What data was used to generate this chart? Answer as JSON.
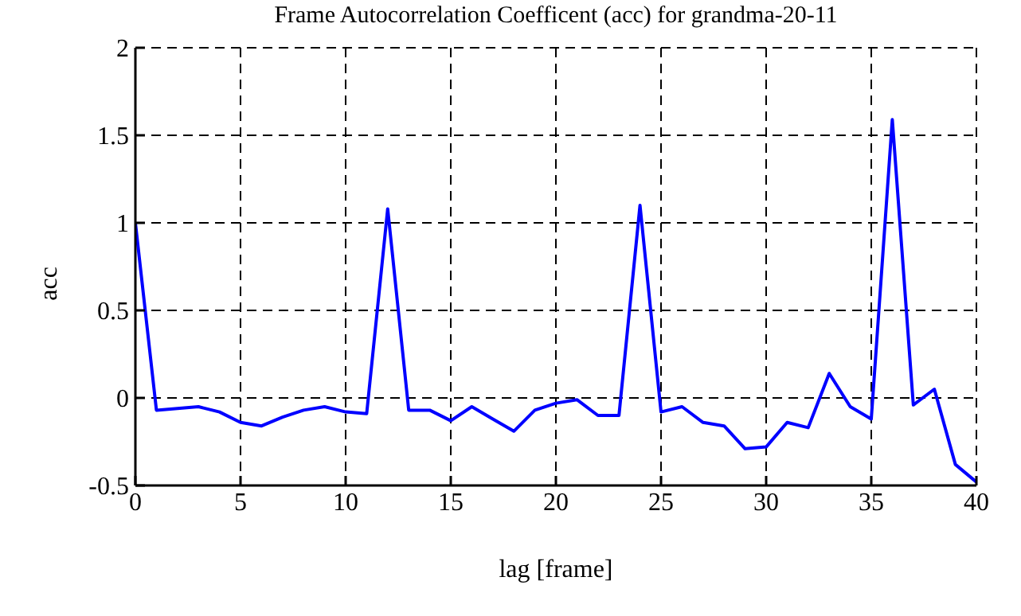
{
  "chart_data": {
    "type": "line",
    "title": "Frame Autocorrelation Coefficent (acc) for grandma-20-11",
    "xlabel": "lag [frame]",
    "ylabel": "acc",
    "x": [
      0,
      1,
      2,
      3,
      4,
      5,
      6,
      7,
      8,
      9,
      10,
      11,
      12,
      13,
      14,
      15,
      16,
      17,
      18,
      19,
      20,
      21,
      22,
      23,
      24,
      25,
      26,
      27,
      28,
      29,
      30,
      31,
      32,
      33,
      34,
      35,
      36,
      37,
      38,
      39,
      40
    ],
    "series": [
      {
        "color": "#0000ff",
        "values": [
          1.0,
          -0.07,
          -0.06,
          -0.05,
          -0.08,
          -0.14,
          -0.16,
          -0.11,
          -0.07,
          -0.05,
          -0.08,
          -0.09,
          1.08,
          -0.07,
          -0.07,
          -0.13,
          -0.05,
          -0.12,
          -0.19,
          -0.07,
          -0.03,
          -0.01,
          -0.1,
          -0.1,
          1.1,
          -0.08,
          -0.05,
          -0.14,
          -0.16,
          -0.29,
          -0.28,
          -0.14,
          -0.17,
          0.14,
          -0.05,
          -0.12,
          1.59,
          -0.04,
          0.05,
          -0.38,
          -0.48
        ]
      }
    ],
    "xlim": [
      0,
      40
    ],
    "xticks": [
      0,
      5,
      10,
      15,
      20,
      25,
      30,
      35,
      40
    ],
    "ylim": [
      -0.5,
      2
    ],
    "yticks": [
      -0.5,
      0,
      0.5,
      1,
      1.5,
      2
    ],
    "grid": true,
    "legend": false,
    "marker": "none",
    "line_style": "solid"
  }
}
